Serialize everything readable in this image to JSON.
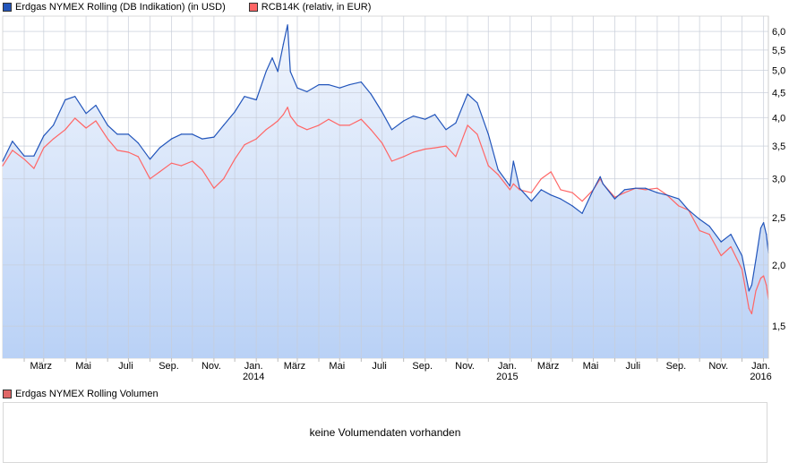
{
  "legend": {
    "series1": {
      "label": "Erdgas NYMEX Rolling (DB Indikation) (in USD)",
      "color": "#2255bb"
    },
    "series2": {
      "label": "RCB14K (relativ, in EUR)",
      "color": "#ff6666"
    }
  },
  "volume": {
    "legend_label": "Erdgas NYMEX Rolling Volumen",
    "legend_color": "#e06666",
    "empty_message": "keine Volumendaten vorhanden"
  },
  "chart_data": {
    "type": "line",
    "title": "",
    "xlabel": "",
    "ylabel": "",
    "y_scale": "log",
    "ylim": [
      1.29,
      6.45
    ],
    "xlim": [
      "2013-01-01",
      "2016-01-08"
    ],
    "grid": true,
    "legend_position": "top-left",
    "y_axis_side": "right",
    "area_fill_under": "Erdgas NYMEX Rolling (DB Indikation) (in USD)",
    "y_ticks": [
      {
        "value": 1.5,
        "label": "1,5"
      },
      {
        "value": 2.0,
        "label": "2,0"
      },
      {
        "value": 2.5,
        "label": "2,5"
      },
      {
        "value": 3.0,
        "label": "3,0"
      },
      {
        "value": 3.5,
        "label": "3,5"
      },
      {
        "value": 4.0,
        "label": "4,0"
      },
      {
        "value": 4.5,
        "label": "4,5"
      },
      {
        "value": 5.0,
        "label": "5,0"
      },
      {
        "value": 5.5,
        "label": "5,5"
      },
      {
        "value": 6.0,
        "label": "6,0"
      }
    ],
    "x_ticks": [
      {
        "date": "2013-03-01",
        "label": "März",
        "year": ""
      },
      {
        "date": "2013-05-01",
        "label": "Mai",
        "year": ""
      },
      {
        "date": "2013-07-01",
        "label": "Juli",
        "year": ""
      },
      {
        "date": "2013-09-01",
        "label": "Sep.",
        "year": ""
      },
      {
        "date": "2013-11-01",
        "label": "Nov.",
        "year": ""
      },
      {
        "date": "2014-01-01",
        "label": "Jan.",
        "year": "2014"
      },
      {
        "date": "2014-03-01",
        "label": "März",
        "year": ""
      },
      {
        "date": "2014-05-01",
        "label": "Mai",
        "year": ""
      },
      {
        "date": "2014-07-01",
        "label": "Juli",
        "year": ""
      },
      {
        "date": "2014-09-01",
        "label": "Sep.",
        "year": ""
      },
      {
        "date": "2014-11-01",
        "label": "Nov.",
        "year": ""
      },
      {
        "date": "2015-01-01",
        "label": "Jan.",
        "year": "2015"
      },
      {
        "date": "2015-03-01",
        "label": "März",
        "year": ""
      },
      {
        "date": "2015-05-01",
        "label": "Mai",
        "year": ""
      },
      {
        "date": "2015-07-01",
        "label": "Juli",
        "year": ""
      },
      {
        "date": "2015-09-01",
        "label": "Sep.",
        "year": ""
      },
      {
        "date": "2015-11-01",
        "label": "Nov.",
        "year": ""
      },
      {
        "date": "2016-01-01",
        "label": "Jan.",
        "year": "2016"
      }
    ],
    "x": [
      "2013-01-01",
      "2013-01-15",
      "2013-02-01",
      "2013-02-15",
      "2013-03-01",
      "2013-03-15",
      "2013-04-01",
      "2013-04-15",
      "2013-05-01",
      "2013-05-15",
      "2013-06-01",
      "2013-06-15",
      "2013-07-01",
      "2013-07-15",
      "2013-08-01",
      "2013-08-15",
      "2013-09-01",
      "2013-09-15",
      "2013-10-01",
      "2013-10-15",
      "2013-11-01",
      "2013-11-15",
      "2013-12-01",
      "2013-12-15",
      "2014-01-01",
      "2014-01-15",
      "2014-01-24",
      "2014-02-01",
      "2014-02-09",
      "2014-02-15",
      "2014-02-19",
      "2014-03-01",
      "2014-03-15",
      "2014-04-01",
      "2014-04-15",
      "2014-05-01",
      "2014-05-15",
      "2014-06-01",
      "2014-06-15",
      "2014-07-01",
      "2014-07-15",
      "2014-08-01",
      "2014-08-15",
      "2014-09-01",
      "2014-09-15",
      "2014-10-01",
      "2014-10-15",
      "2014-11-01",
      "2014-11-15",
      "2014-12-01",
      "2014-12-15",
      "2015-01-01",
      "2015-01-06",
      "2015-01-15",
      "2015-02-01",
      "2015-02-15",
      "2015-03-01",
      "2015-03-15",
      "2015-04-01",
      "2015-04-15",
      "2015-05-01",
      "2015-05-11",
      "2015-05-15",
      "2015-06-01",
      "2015-06-15",
      "2015-07-01",
      "2015-07-15",
      "2015-08-01",
      "2015-08-15",
      "2015-09-01",
      "2015-09-15",
      "2015-10-01",
      "2015-10-15",
      "2015-11-01",
      "2015-11-15",
      "2015-12-01",
      "2015-12-11",
      "2015-12-15",
      "2015-12-21",
      "2015-12-28",
      "2016-01-01",
      "2016-01-05",
      "2016-01-08"
    ],
    "series": [
      {
        "name": "Erdgas NYMEX Rolling (DB Indikation) (in USD)",
        "color": "#2255bb",
        "values": [
          3.26,
          3.58,
          3.34,
          3.34,
          3.67,
          3.86,
          4.35,
          4.42,
          4.08,
          4.24,
          3.86,
          3.7,
          3.7,
          3.55,
          3.29,
          3.47,
          3.62,
          3.7,
          3.7,
          3.62,
          3.65,
          3.86,
          4.11,
          4.42,
          4.35,
          4.97,
          5.3,
          4.97,
          5.65,
          6.19,
          4.97,
          4.6,
          4.52,
          4.67,
          4.67,
          4.6,
          4.67,
          4.73,
          4.47,
          4.11,
          3.78,
          3.94,
          4.03,
          3.97,
          4.06,
          3.78,
          3.9,
          4.47,
          4.29,
          3.7,
          3.13,
          2.9,
          3.26,
          2.87,
          2.7,
          2.85,
          2.78,
          2.73,
          2.64,
          2.55,
          2.85,
          3.03,
          2.93,
          2.73,
          2.85,
          2.87,
          2.87,
          2.81,
          2.78,
          2.73,
          2.59,
          2.48,
          2.4,
          2.23,
          2.31,
          2.09,
          1.77,
          1.82,
          2.05,
          2.38,
          2.44,
          2.31,
          2.12
        ]
      },
      {
        "name": "RCB14K (relativ, in EUR)",
        "color": "#ff6666",
        "values": [
          3.19,
          3.43,
          3.29,
          3.15,
          3.47,
          3.62,
          3.78,
          3.99,
          3.81,
          3.94,
          3.62,
          3.43,
          3.4,
          3.33,
          3.0,
          3.1,
          3.23,
          3.19,
          3.26,
          3.13,
          2.87,
          3.0,
          3.29,
          3.52,
          3.62,
          3.78,
          3.86,
          3.94,
          4.06,
          4.2,
          4.03,
          3.86,
          3.78,
          3.86,
          3.97,
          3.86,
          3.86,
          3.97,
          3.78,
          3.55,
          3.26,
          3.33,
          3.4,
          3.45,
          3.47,
          3.5,
          3.33,
          3.86,
          3.7,
          3.19,
          3.06,
          2.85,
          2.93,
          2.85,
          2.81,
          3.0,
          3.1,
          2.85,
          2.81,
          2.7,
          2.85,
          3.0,
          2.93,
          2.75,
          2.81,
          2.87,
          2.85,
          2.87,
          2.78,
          2.64,
          2.59,
          2.35,
          2.31,
          2.09,
          2.18,
          1.96,
          1.63,
          1.59,
          1.77,
          1.88,
          1.9,
          1.82,
          1.7
        ]
      }
    ]
  }
}
